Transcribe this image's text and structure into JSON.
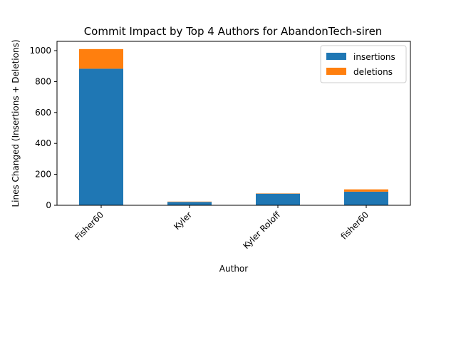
{
  "chart_data": {
    "type": "bar",
    "stacked": true,
    "title": "Commit Impact by Top 4 Authors for AbandonTech-siren",
    "xlabel": "Author",
    "ylabel": "Lines Changed (Insertions + Deletions)",
    "categories": [
      "Fisher60",
      "Kyler",
      "Kyler Roloff",
      "fisher60"
    ],
    "series": [
      {
        "name": "insertions",
        "color": "#1f77b4",
        "values": [
          883,
          22,
          75,
          88
        ]
      },
      {
        "name": "deletions",
        "color": "#ff7f0e",
        "values": [
          127,
          2,
          2,
          15
        ]
      }
    ],
    "ylim": [
      0,
      1060
    ],
    "yticks": [
      0,
      200,
      400,
      600,
      800,
      1000
    ],
    "grid": false,
    "legend_position": "top-right"
  }
}
